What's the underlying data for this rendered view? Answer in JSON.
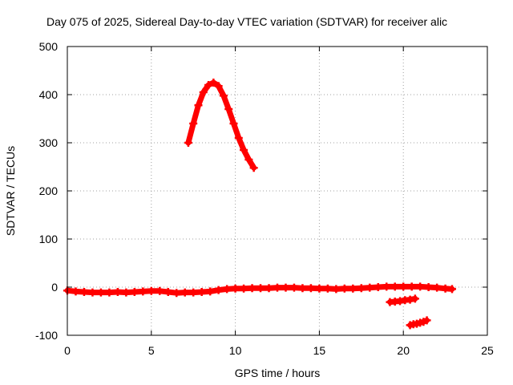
{
  "chart_data": {
    "type": "scatter",
    "title": "Day 075 of 2025, Sidereal Day-to-day VTEC variation (SDTVAR) for receiver alic",
    "xlabel": "GPS time / hours",
    "ylabel": "SDTVAR / TECUs",
    "xlim": [
      0,
      25
    ],
    "ylim": [
      -100,
      500
    ],
    "xticks": [
      0,
      5,
      10,
      15,
      20,
      25
    ],
    "yticks": [
      -100,
      0,
      100,
      200,
      300,
      400,
      500
    ],
    "grid": true,
    "marker_color": "#ff0000",
    "series": [
      {
        "name": "main-arc",
        "x": [
          0.0,
          0.5,
          1.0,
          1.5,
          2.0,
          2.5,
          3.0,
          3.5,
          4.0,
          4.5,
          5.0,
          5.5,
          6.0,
          6.5,
          7.0,
          7.5,
          8.0,
          8.5,
          9.0,
          9.5,
          10.0,
          10.5,
          11.0,
          11.5,
          12.0,
          12.5,
          13.0,
          13.5,
          14.0,
          14.5,
          15.0,
          15.5,
          16.0,
          16.5,
          17.0,
          17.5,
          18.0,
          18.5,
          19.0,
          19.5,
          20.0,
          20.5,
          21.0,
          21.5,
          22.0,
          22.5,
          22.9
        ],
        "y": [
          -7,
          -9,
          -10,
          -11,
          -11,
          -11,
          -10,
          -11,
          -10,
          -9,
          -8,
          -8,
          -10,
          -12,
          -11,
          -11,
          -10,
          -9,
          -6,
          -4,
          -3,
          -3,
          -2,
          -2,
          -2,
          -1,
          -1,
          -1,
          -2,
          -2,
          -3,
          -3,
          -4,
          -3,
          -3,
          -2,
          -1,
          0,
          1,
          1,
          1,
          1,
          1,
          0,
          -1,
          -3,
          -4
        ]
      },
      {
        "name": "high-arc",
        "x": [
          7.2,
          7.5,
          7.8,
          8.1,
          8.4,
          8.7,
          9.0,
          9.3,
          9.6,
          9.9,
          10.2,
          10.5,
          10.8,
          11.1
        ],
        "y": [
          300,
          340,
          378,
          405,
          420,
          425,
          418,
          398,
          370,
          340,
          310,
          285,
          265,
          248
        ]
      },
      {
        "name": "arc-minus-30",
        "x": [
          19.2,
          19.5,
          19.8,
          20.1,
          20.4,
          20.7
        ],
        "y": [
          -31,
          -30,
          -29,
          -27,
          -26,
          -24
        ]
      },
      {
        "name": "arc-minus-80",
        "x": [
          20.4,
          20.6,
          20.8,
          21.0,
          21.2,
          21.4
        ],
        "y": [
          -79,
          -77,
          -76,
          -74,
          -72,
          -69
        ]
      }
    ]
  }
}
